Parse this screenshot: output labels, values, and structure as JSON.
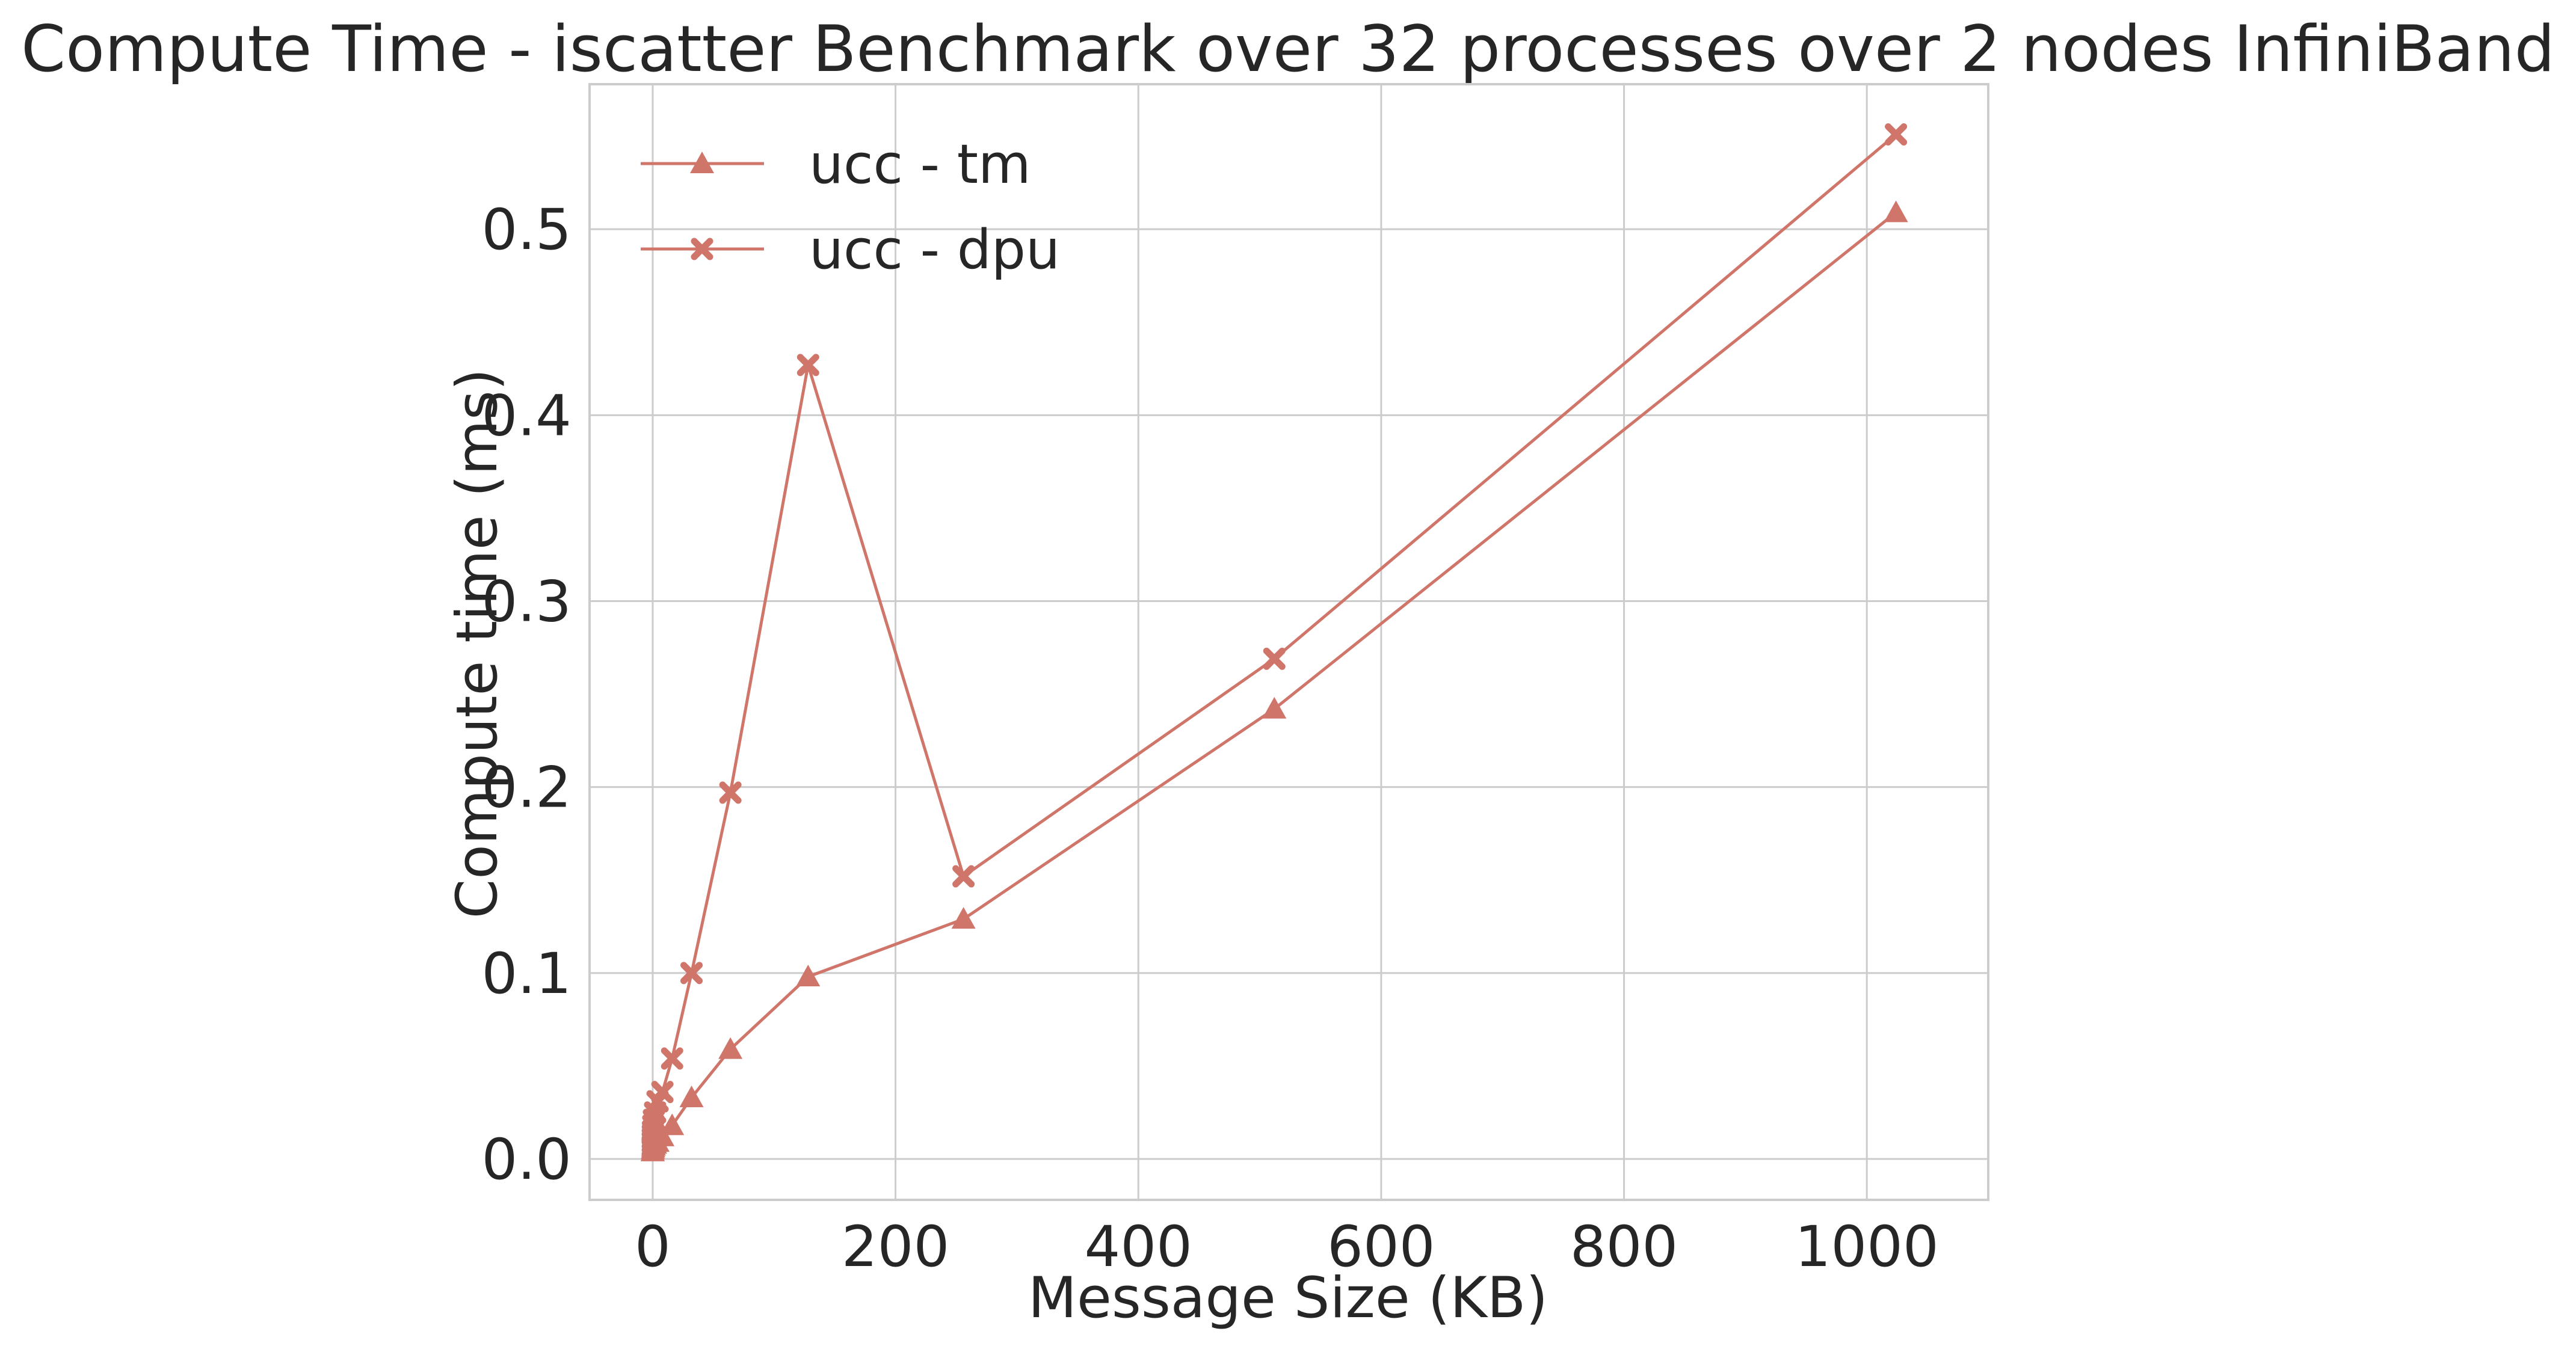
{
  "chart_data": {
    "type": "line",
    "title": "Compute Time - iscatter Benchmark over 32 processes over 2 nodes InfiniBand",
    "xlabel": "Message Size (KB)",
    "ylabel": "Compute time (ms)",
    "xlim": [
      -52,
      1100
    ],
    "ylim": [
      -0.022,
      0.578
    ],
    "xticks": [
      0,
      200,
      400,
      600,
      800,
      1000
    ],
    "xtick_labels": [
      "0",
      "200",
      "400",
      "600",
      "800",
      "1000"
    ],
    "yticks": [
      0.0,
      0.1,
      0.2,
      0.3,
      0.4,
      0.5
    ],
    "ytick_labels": [
      "0.0",
      "0.1",
      "0.2",
      "0.3",
      "0.4",
      "0.5"
    ],
    "grid": true,
    "legend_position": "top-left",
    "x": [
      0.0039,
      0.0078,
      0.0156,
      0.03125,
      0.0625,
      0.125,
      0.25,
      0.5,
      1,
      2,
      4,
      8,
      16,
      32,
      64,
      128,
      256,
      512,
      1024
    ],
    "series": [
      {
        "name": "ucc - tm",
        "marker": "triangle",
        "color": "#d0756a",
        "values": [
          0.004,
          0.004,
          0.004,
          0.004,
          0.005,
          0.005,
          0.005,
          0.006,
          0.007,
          0.008,
          0.009,
          0.012,
          0.018,
          0.033,
          0.059,
          0.098,
          0.129,
          0.242,
          0.509
        ]
      },
      {
        "name": "ucc - dpu",
        "marker": "x",
        "color": "#d0756a",
        "values": [
          0.005,
          0.006,
          0.007,
          0.009,
          0.011,
          0.013,
          0.015,
          0.018,
          0.021,
          0.025,
          0.031,
          0.036,
          0.054,
          0.1,
          0.197,
          0.427,
          0.152,
          0.269,
          0.551
        ]
      }
    ]
  }
}
